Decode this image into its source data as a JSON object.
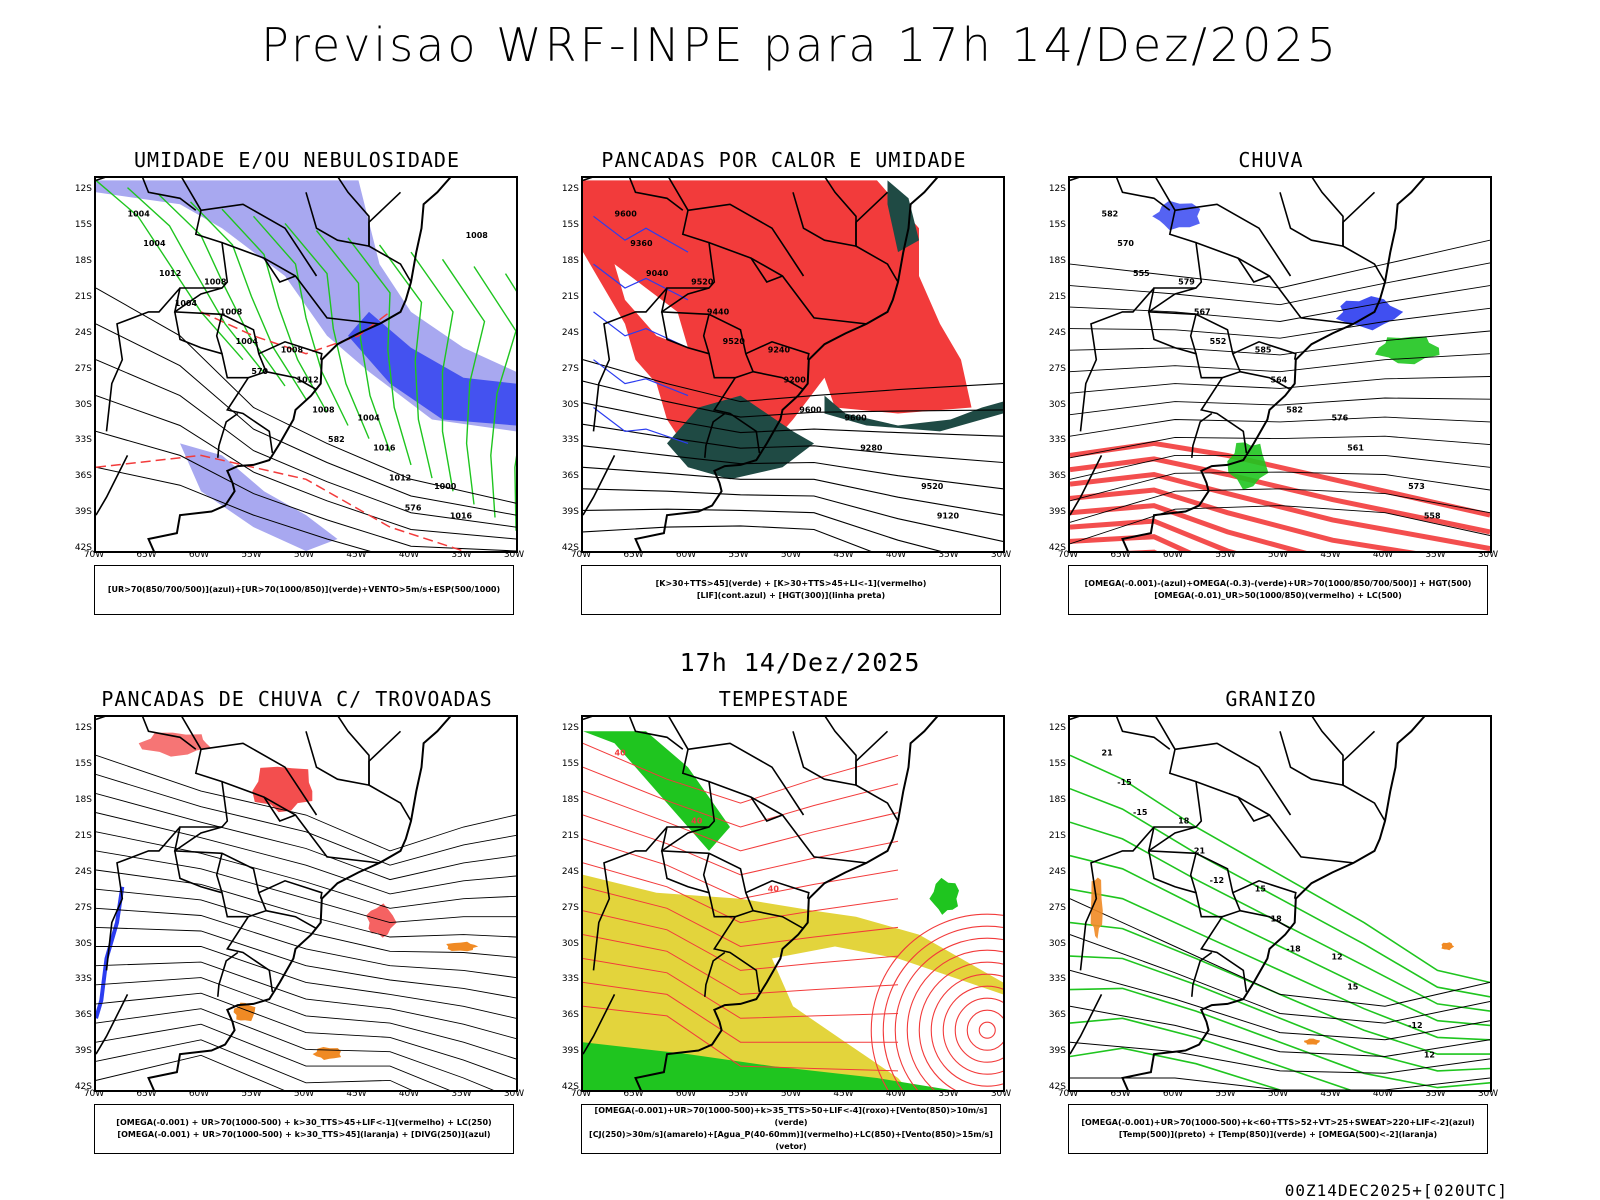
{
  "title": "Previsao WRF-INPE  para 17h 14/Dez/2025",
  "mid_title": "17h 14/Dez/2025",
  "footer": "00Z14DEC2025+[020UTC]",
  "latitudes": [
    "12S",
    "15S",
    "18S",
    "21S",
    "24S",
    "27S",
    "30S",
    "33S",
    "36S",
    "39S",
    "42S"
  ],
  "longitudes": [
    "70W",
    "65W",
    "60W",
    "55W",
    "50W",
    "45W",
    "40W",
    "35W",
    "30W"
  ],
  "colors": {
    "red": "#f23b3b",
    "green": "#1fc51f",
    "blue": "#2b3cf0",
    "lavender": "#a8a8f0",
    "yellow": "#e3d43c",
    "orange": "#f08a24",
    "darkteal": "#1f4a44"
  },
  "panels": [
    {
      "title": "UMIDADE E/OU NEBULOSIDADE",
      "legend": [
        "[UR>70(850/700/500)](azul)+[UR>70(1000/850)](verde)+VENTO>5m/s+ESP(500/1000)"
      ],
      "labels": [
        "1004",
        "1008",
        "1008",
        "1004",
        "1000",
        "1004",
        "1008",
        "1012",
        "1016",
        "1016",
        "1012",
        "1004",
        "1008",
        "1012",
        "1008",
        "1004",
        "570",
        "582",
        "576"
      ]
    },
    {
      "title": "PANCADAS POR CALOR E UMIDADE",
      "legend": [
        "[K>30+TTS>45](verde) + [K>30+TTS>45+LI<-1](vermelho)",
        "[LIF](cont.azul) + [HGT(300)](linha preta)"
      ],
      "labels": [
        "9600",
        "9520",
        "9240",
        "9600",
        "9520",
        "9360",
        "9440",
        "9200",
        "9280",
        "9120",
        "9040",
        "9520",
        "9600"
      ]
    },
    {
      "title": "CHUVA",
      "legend": [
        "[OMEGA(-0.001)-(azul)+OMEGA(-0.3)-(verde)+UR>70(1000/850/700/500)] + HGT(500)",
        "[OMEGA(-0.01)_UR>50(1000/850)(vermelho) + LC(500)"
      ],
      "labels": [
        "582",
        "579",
        "585",
        "576",
        "573",
        "570",
        "567",
        "564",
        "561",
        "558",
        "555",
        "552",
        "582"
      ]
    },
    {
      "title": "PANCADAS DE CHUVA C/ TROVOADAS",
      "legend": [
        "[OMEGA(-0.001) + UR>70(1000-500) + k>30_TTS>45+LIF<-1](vermelho) + LC(250)",
        "[OMEGA(-0.001) + UR>70(1000-500) + k>30_TTS>45](laranja) + [DIVG(250)](azul)"
      ],
      "labels": []
    },
    {
      "title": "TEMPESTADE",
      "legend": [
        "[OMEGA(-0.001)+UR>70(1000-500)+k>35_TTS>50+LIF<-4](roxo)+[Vento(850)>10m/s](verde)",
        "[CJ(250)>30m/s](amarelo)+[Agua_P(40-60mm)](vermelho)+LC(850)+[Vento(850)>15m/s](vetor)"
      ],
      "labels": [
        "40",
        "40",
        "40"
      ]
    },
    {
      "title": "GRANIZO",
      "legend": [
        "[OMEGA(-0.001)+UR>70(1000-500)+k<60+TTS>52+VT>25+SWEAT>220+LIF<-2](azul)",
        "[Temp(500)](preto) + [Temp(850)](verde) + [OMEGA(500)<-2](laranja)"
      ],
      "labels": [
        "21",
        "18",
        "15",
        "12",
        "-12",
        "-15",
        "21",
        "18",
        "15",
        "12",
        "-15",
        "-12",
        "-18"
      ]
    }
  ]
}
